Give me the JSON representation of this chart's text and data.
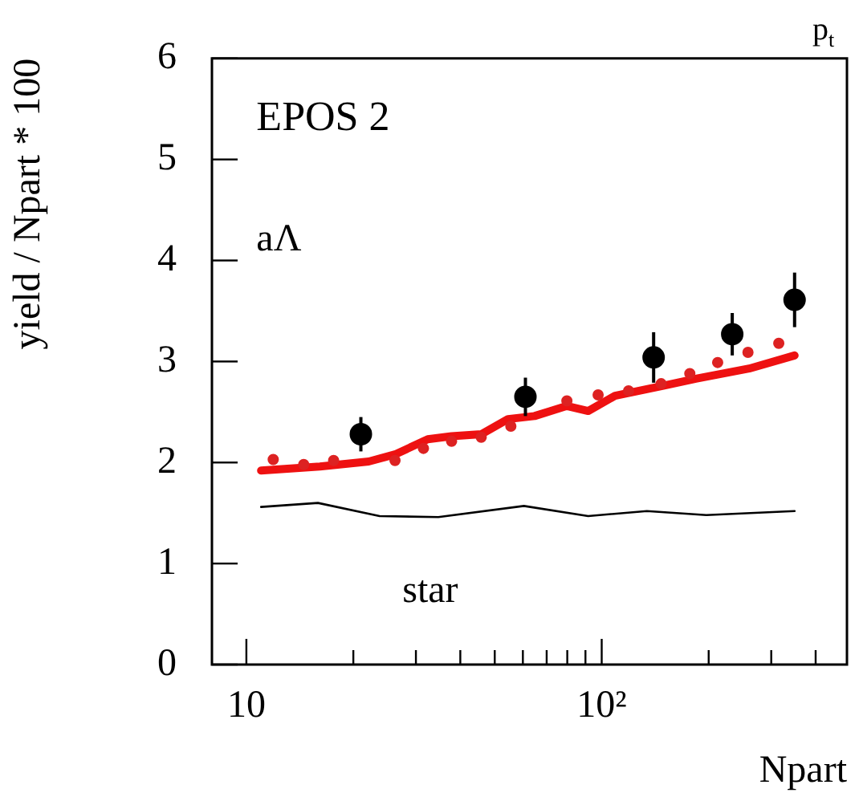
{
  "chart_data": {
    "type": "scatter",
    "xlabel": "Npart",
    "ylabel": "yield / Npart * 100",
    "annotations": [
      "EPOS 2",
      "aΛ",
      "star",
      "p$_{t}$"
    ],
    "log": "x",
    "xlim": [
      8,
      490
    ],
    "ylim": [
      0,
      6
    ],
    "grid": false,
    "legend": false,
    "xticks": [
      {
        "value": 10,
        "label": "10"
      },
      {
        "value": 20,
        "label": null
      },
      {
        "value": 30,
        "label": null
      },
      {
        "value": 40,
        "label": null
      },
      {
        "value": 50,
        "label": null
      },
      {
        "value": 60,
        "label": null
      },
      {
        "value": 70,
        "label": null
      },
      {
        "value": 80,
        "label": null
      },
      {
        "value": 90,
        "label": null
      },
      {
        "value": 100,
        "label": "10²"
      },
      {
        "value": 200,
        "label": null
      },
      {
        "value": 300,
        "label": null
      },
      {
        "value": 400,
        "label": null
      }
    ],
    "yticks": [
      0,
      1,
      2,
      3,
      4,
      5,
      6
    ],
    "series": [
      {
        "type": "line",
        "color": "#000000",
        "line_style": "solid",
        "marker": "none",
        "x": [
          11.0,
          15.9,
          23.7,
          34.7,
          60.4,
          91.6,
          134,
          197,
          349
        ],
        "values": [
          1.56,
          1.6,
          1.47,
          1.46,
          1.57,
          1.47,
          1.52,
          1.48,
          1.52
        ]
      },
      {
        "type": "line",
        "color": "#ee1111",
        "line_style": "solid",
        "marker": "none",
        "x": [
          11.0,
          16.1,
          22.1,
          26.2,
          32.4,
          37.8,
          45.8,
          54.5,
          64.7,
          79.8,
          91.6,
          109,
          149,
          184,
          260,
          349
        ],
        "values": [
          1.92,
          1.96,
          2.01,
          2.08,
          2.23,
          2.26,
          2.28,
          2.43,
          2.46,
          2.56,
          2.51,
          2.66,
          2.76,
          2.83,
          2.93,
          3.06
        ]
      },
      {
        "color": "#dd2222",
        "marker": "circle",
        "x": [
          11.9,
          14.5,
          17.6,
          26.2,
          31.5,
          37.8,
          45.8,
          55.5,
          79.8,
          97.7,
          119,
          147,
          177,
          212,
          258,
          315
        ],
        "values": [
          2.03,
          1.98,
          2.02,
          2.02,
          2.14,
          2.21,
          2.25,
          2.36,
          2.61,
          2.67,
          2.71,
          2.78,
          2.88,
          2.99,
          3.09,
          3.18
        ]
      },
      {
        "color": "#000000",
        "marker": "circle",
        "x": [
          21,
          61,
          140,
          233,
          349
        ],
        "values": [
          2.28,
          2.65,
          3.04,
          3.27,
          3.61
        ],
        "errors": [
          0.17,
          0.19,
          0.25,
          0.21,
          0.27
        ]
      }
    ]
  }
}
